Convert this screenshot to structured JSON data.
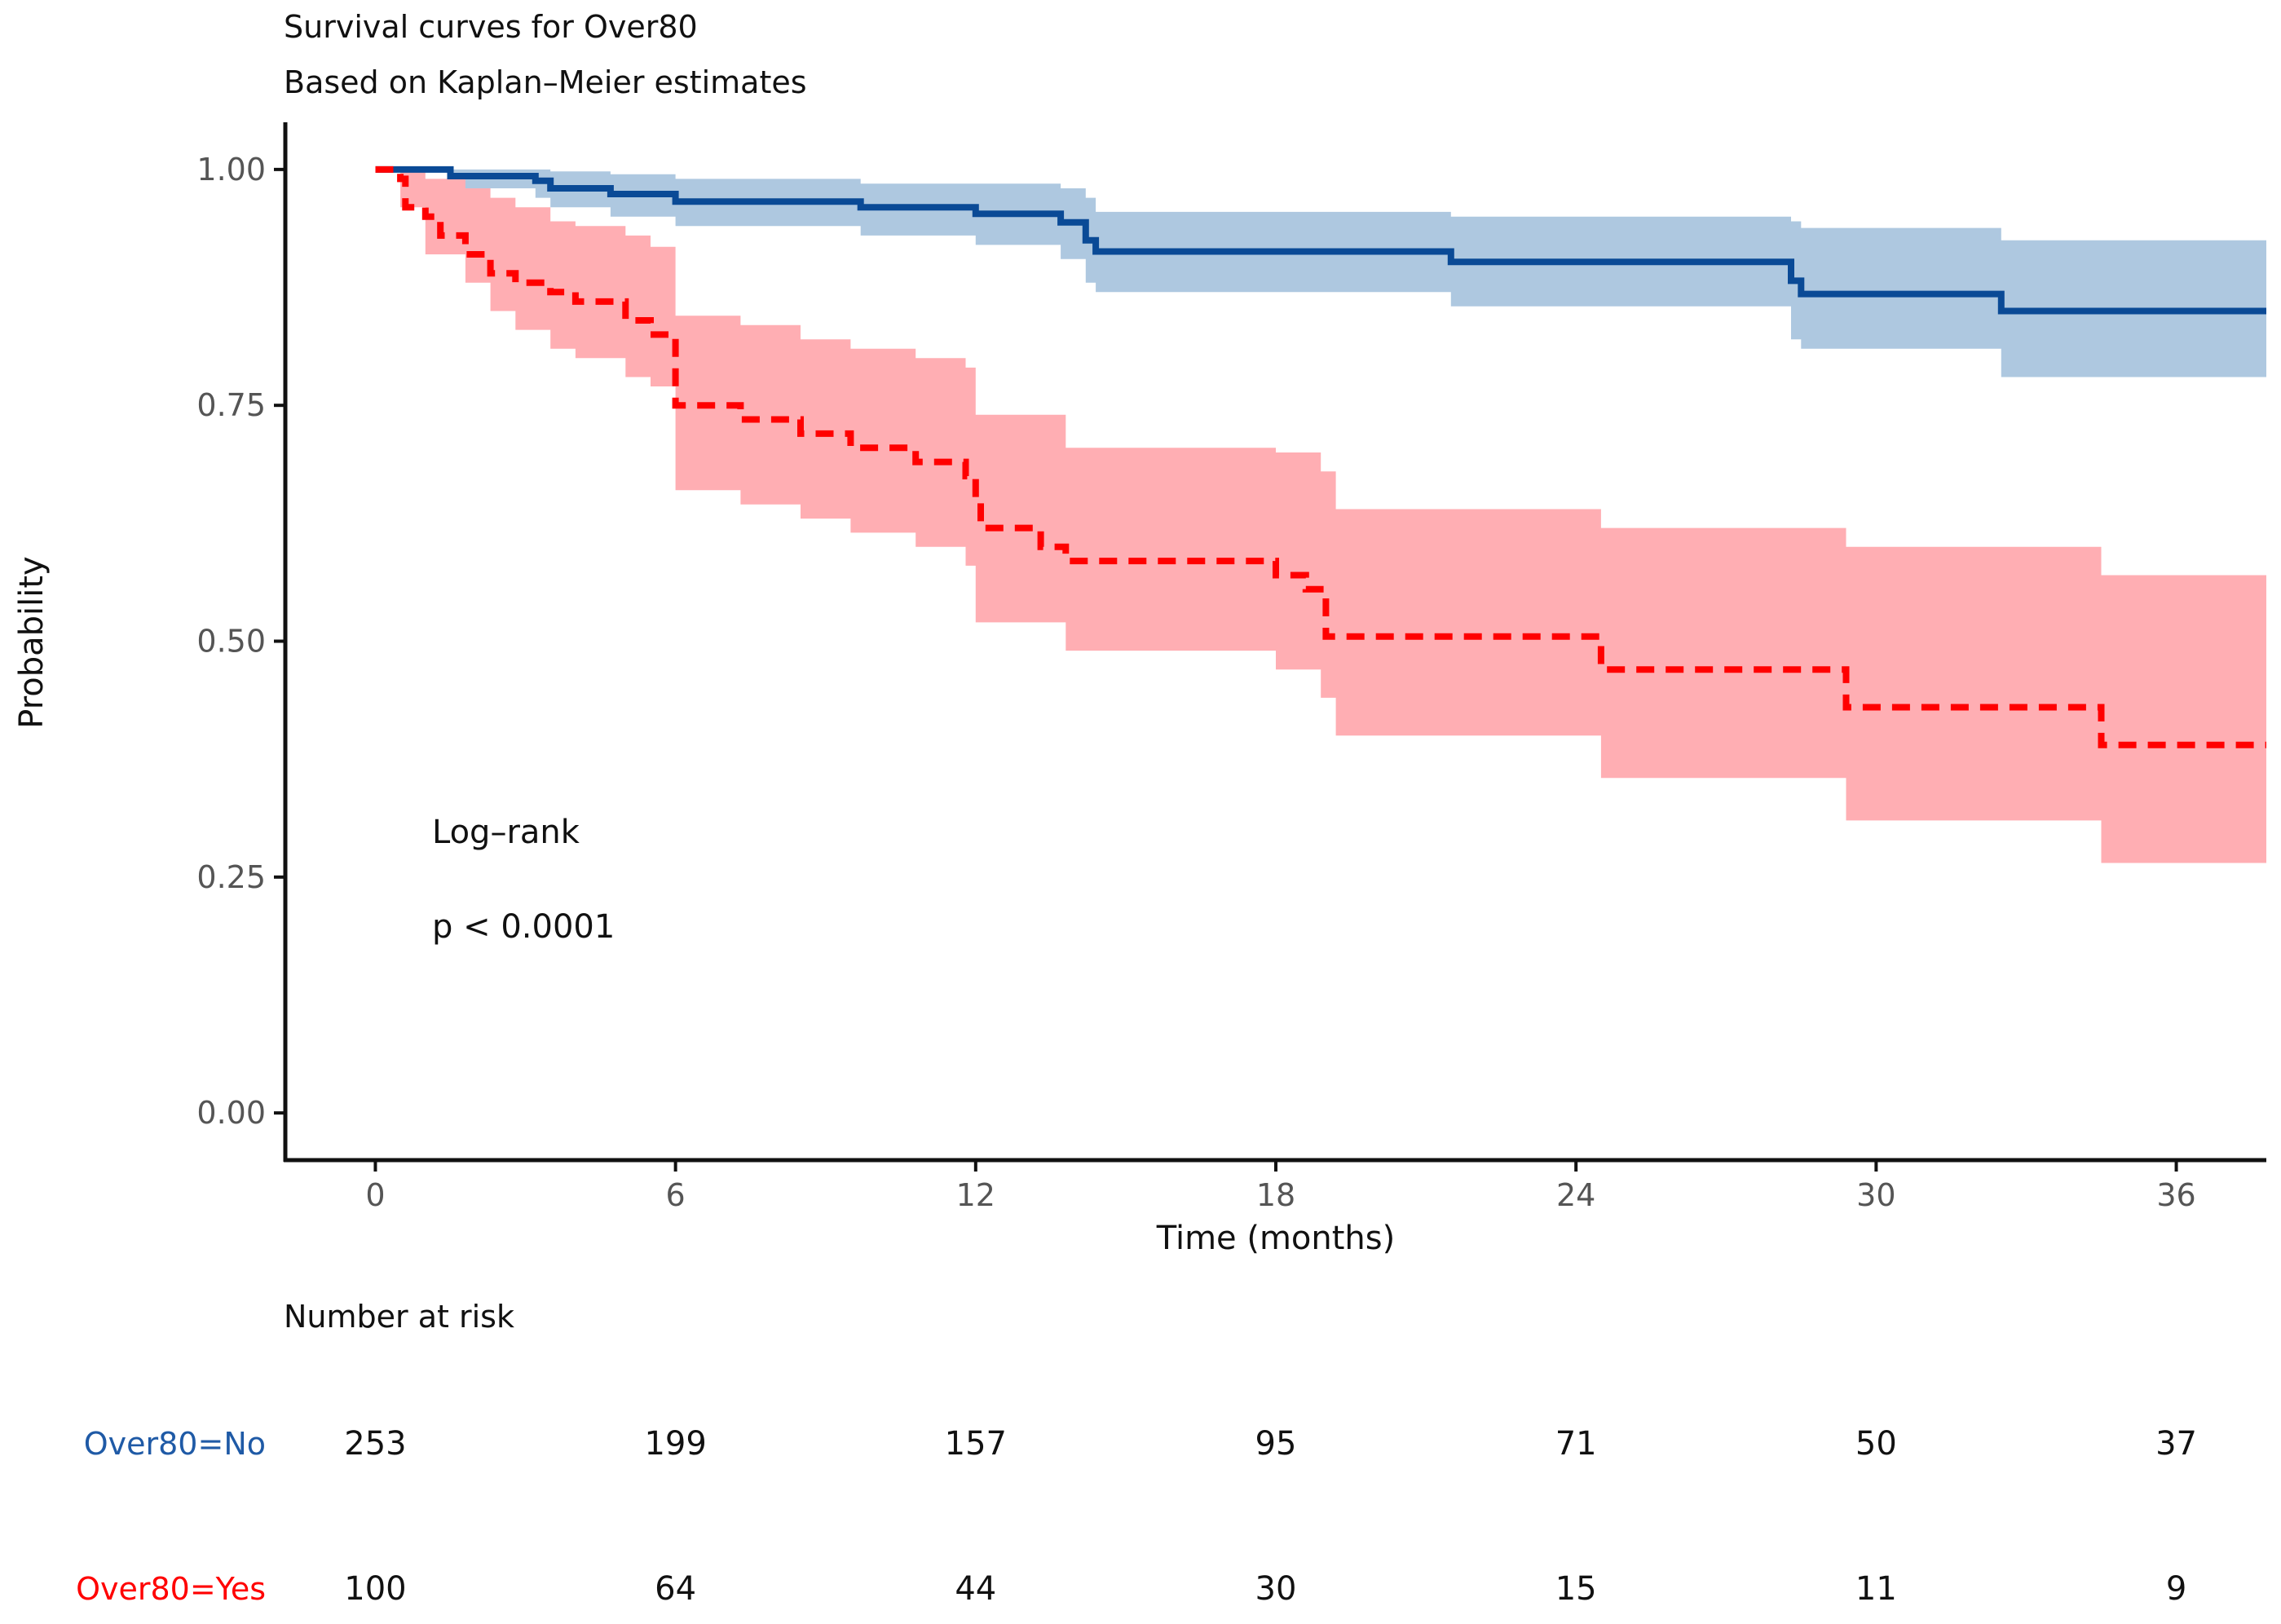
{
  "chart_data": {
    "type": "line",
    "subtype": "kaplan-meier",
    "title": "Survival curves for Over80",
    "subtitle": "Based on Kaplan–Meier estimates",
    "xlabel": "Time (months)",
    "ylabel": "Probability",
    "xlim": [
      -1.8,
      37.8
    ],
    "ylim": [
      -0.05,
      1.05
    ],
    "x_ticks": [
      0,
      6,
      12,
      18,
      24,
      30,
      36
    ],
    "y_ticks": [
      0,
      0.25,
      0.5,
      0.75,
      1.0
    ],
    "y_tick_labels": [
      "0.00",
      "0.25",
      "0.50",
      "0.75",
      "1.00"
    ],
    "grid": false,
    "annotation": {
      "line1": "Log–rank",
      "line2": "p < 0.0001"
    },
    "series": [
      {
        "key": "no",
        "color": "#0a4a96",
        "band_color": "#aec8e0",
        "line_style": "solid",
        "steps": [
          [
            0,
            1.0
          ],
          [
            1.5,
            0.993
          ],
          [
            3.2,
            0.988
          ],
          [
            3.5,
            0.98
          ],
          [
            4.7,
            0.974
          ],
          [
            6.0,
            0.966
          ],
          [
            9.7,
            0.96
          ],
          [
            12.0,
            0.953
          ],
          [
            13.7,
            0.944
          ],
          [
            14.2,
            0.925
          ],
          [
            14.4,
            0.913
          ],
          [
            21.5,
            0.902
          ],
          [
            28.3,
            0.882
          ],
          [
            28.5,
            0.868
          ],
          [
            32.5,
            0.85
          ],
          [
            37.8,
            0.85
          ]
        ],
        "band": [
          [
            0,
            1.0,
            1.0
          ],
          [
            1.5,
            0.98,
            1.0
          ],
          [
            3.2,
            0.97,
            1.0
          ],
          [
            3.5,
            0.96,
            0.998
          ],
          [
            4.7,
            0.95,
            0.995
          ],
          [
            6.0,
            0.94,
            0.99
          ],
          [
            9.7,
            0.93,
            0.985
          ],
          [
            12.0,
            0.92,
            0.985
          ],
          [
            13.7,
            0.905,
            0.98
          ],
          [
            14.2,
            0.88,
            0.97
          ],
          [
            14.4,
            0.87,
            0.955
          ],
          [
            21.5,
            0.855,
            0.95
          ],
          [
            28.3,
            0.82,
            0.945
          ],
          [
            28.5,
            0.81,
            0.938
          ],
          [
            32.5,
            0.78,
            0.925
          ],
          [
            37.8,
            0.78,
            0.925
          ]
        ]
      },
      {
        "key": "yes",
        "color": "#ff0000",
        "band_color": "#ffaeb3",
        "line_style": "dashed",
        "steps": [
          [
            0,
            1.0
          ],
          [
            0.5,
            0.99
          ],
          [
            0.6,
            0.96
          ],
          [
            1.0,
            0.95
          ],
          [
            1.3,
            0.93
          ],
          [
            1.8,
            0.91
          ],
          [
            2.3,
            0.89
          ],
          [
            2.8,
            0.88
          ],
          [
            3.5,
            0.87
          ],
          [
            4.0,
            0.86
          ],
          [
            5.0,
            0.84
          ],
          [
            5.5,
            0.825
          ],
          [
            6.0,
            0.75
          ],
          [
            7.3,
            0.735
          ],
          [
            8.5,
            0.72
          ],
          [
            9.5,
            0.705
          ],
          [
            10.8,
            0.69
          ],
          [
            11.8,
            0.675
          ],
          [
            12.0,
            0.65
          ],
          [
            12.1,
            0.62
          ],
          [
            13.3,
            0.6
          ],
          [
            13.8,
            0.585
          ],
          [
            18.0,
            0.57
          ],
          [
            18.6,
            0.555
          ],
          [
            19.0,
            0.505
          ],
          [
            24.5,
            0.47
          ],
          [
            29.4,
            0.43
          ],
          [
            34.5,
            0.39
          ],
          [
            37.8,
            0.39
          ]
        ],
        "band": [
          [
            0,
            1.0,
            1.0
          ],
          [
            0.5,
            0.96,
            1.0
          ],
          [
            1.0,
            0.91,
            0.99
          ],
          [
            1.8,
            0.88,
            0.98
          ],
          [
            2.3,
            0.85,
            0.97
          ],
          [
            2.8,
            0.83,
            0.96
          ],
          [
            3.5,
            0.81,
            0.945
          ],
          [
            4.0,
            0.8,
            0.94
          ],
          [
            5.0,
            0.78,
            0.93
          ],
          [
            5.5,
            0.77,
            0.918
          ],
          [
            6.0,
            0.66,
            0.845
          ],
          [
            7.3,
            0.645,
            0.835
          ],
          [
            8.5,
            0.63,
            0.82
          ],
          [
            9.5,
            0.615,
            0.81
          ],
          [
            10.8,
            0.6,
            0.8
          ],
          [
            11.8,
            0.58,
            0.79
          ],
          [
            12.0,
            0.52,
            0.74
          ],
          [
            13.8,
            0.49,
            0.705
          ],
          [
            18.0,
            0.47,
            0.7
          ],
          [
            18.9,
            0.44,
            0.68
          ],
          [
            19.2,
            0.4,
            0.64
          ],
          [
            24.5,
            0.355,
            0.62
          ],
          [
            29.4,
            0.31,
            0.6
          ],
          [
            34.5,
            0.265,
            0.57
          ],
          [
            37.8,
            0.265,
            0.57
          ]
        ]
      }
    ],
    "risk_table": {
      "title": "Number at risk",
      "times": [
        0,
        6,
        12,
        18,
        24,
        30,
        36
      ],
      "rows": [
        {
          "label": "Over80=No",
          "color": "#1f5aa6",
          "counts": [
            "253",
            "199",
            "157",
            "95",
            "71",
            "50",
            "37"
          ]
        },
        {
          "label": "Over80=Yes",
          "color": "#ff0000",
          "counts": [
            "100",
            "64",
            "44",
            "30",
            "15",
            "11",
            "9"
          ]
        }
      ]
    }
  }
}
